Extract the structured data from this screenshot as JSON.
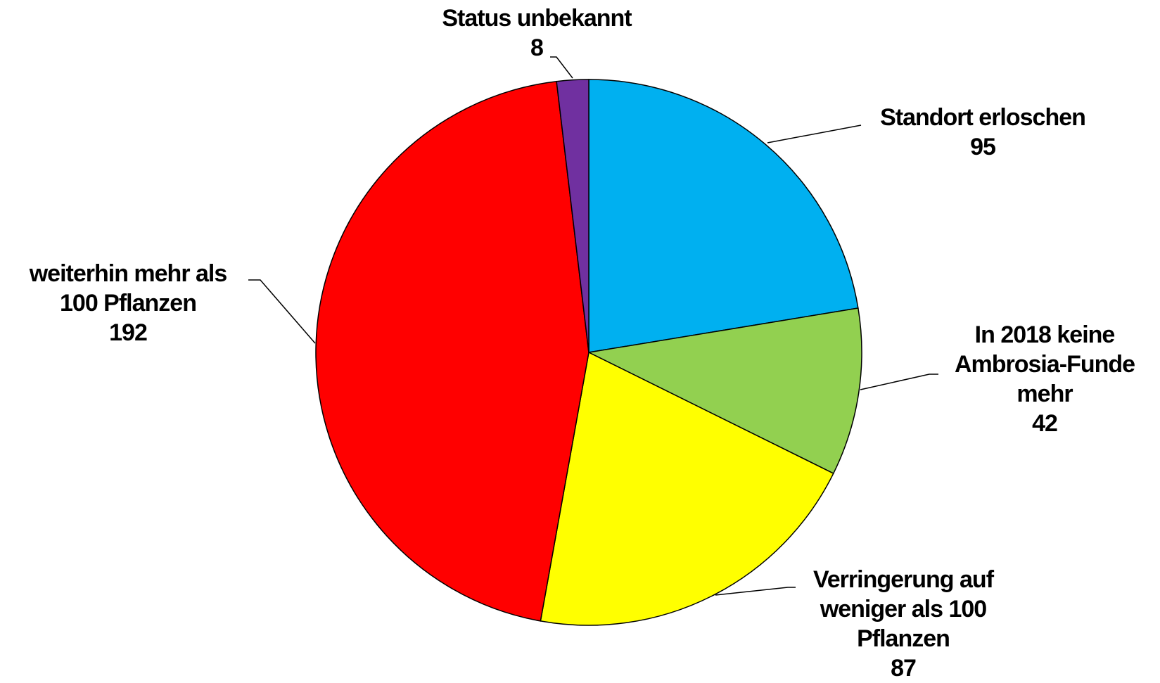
{
  "chart_data": {
    "type": "pie",
    "categories": [
      "Standort erloschen",
      "In 2018 keine Ambrosia-Funde mehr",
      "Verringerung auf weniger als 100 Pflanzen",
      "weiterhin mehr als 100 Pflanzen",
      "Status unbekannt"
    ],
    "values": [
      95,
      42,
      87,
      192,
      8
    ],
    "colors": [
      "#00b0f0",
      "#92d050",
      "#ffff00",
      "#ff0000",
      "#7030a0"
    ]
  }
}
